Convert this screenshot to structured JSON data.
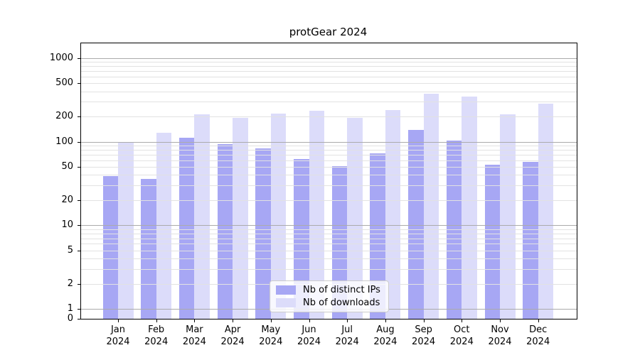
{
  "chart_data": {
    "type": "bar",
    "title": "protGear 2024",
    "y_scale": "symlog",
    "y_ticks": [
      1000,
      500,
      200,
      100,
      50,
      20,
      10,
      5,
      2,
      1,
      0
    ],
    "y_top_value": 1500,
    "grid": "both, drawn over bars",
    "grid_major_color": "#ababab",
    "grid_minor_color": "#e2e2e2",
    "categories": [
      "Jan",
      "Feb",
      "Mar",
      "Apr",
      "May",
      "Jun",
      "Jul",
      "Aug",
      "Sep",
      "Oct",
      "Nov",
      "Dec"
    ],
    "x_year": "2024",
    "series": [
      {
        "name": "Nb of distinct IPs",
        "color": "#a7a7f4",
        "values": [
          39,
          36,
          112,
          94,
          83,
          62,
          51,
          73,
          138,
          103,
          53,
          57
        ]
      },
      {
        "name": "Nb of downloads",
        "color": "#dcdcfa",
        "values": [
          100,
          127,
          212,
          192,
          217,
          232,
          194,
          238,
          372,
          348,
          213,
          285
        ]
      }
    ],
    "legend_position": "lower center"
  }
}
